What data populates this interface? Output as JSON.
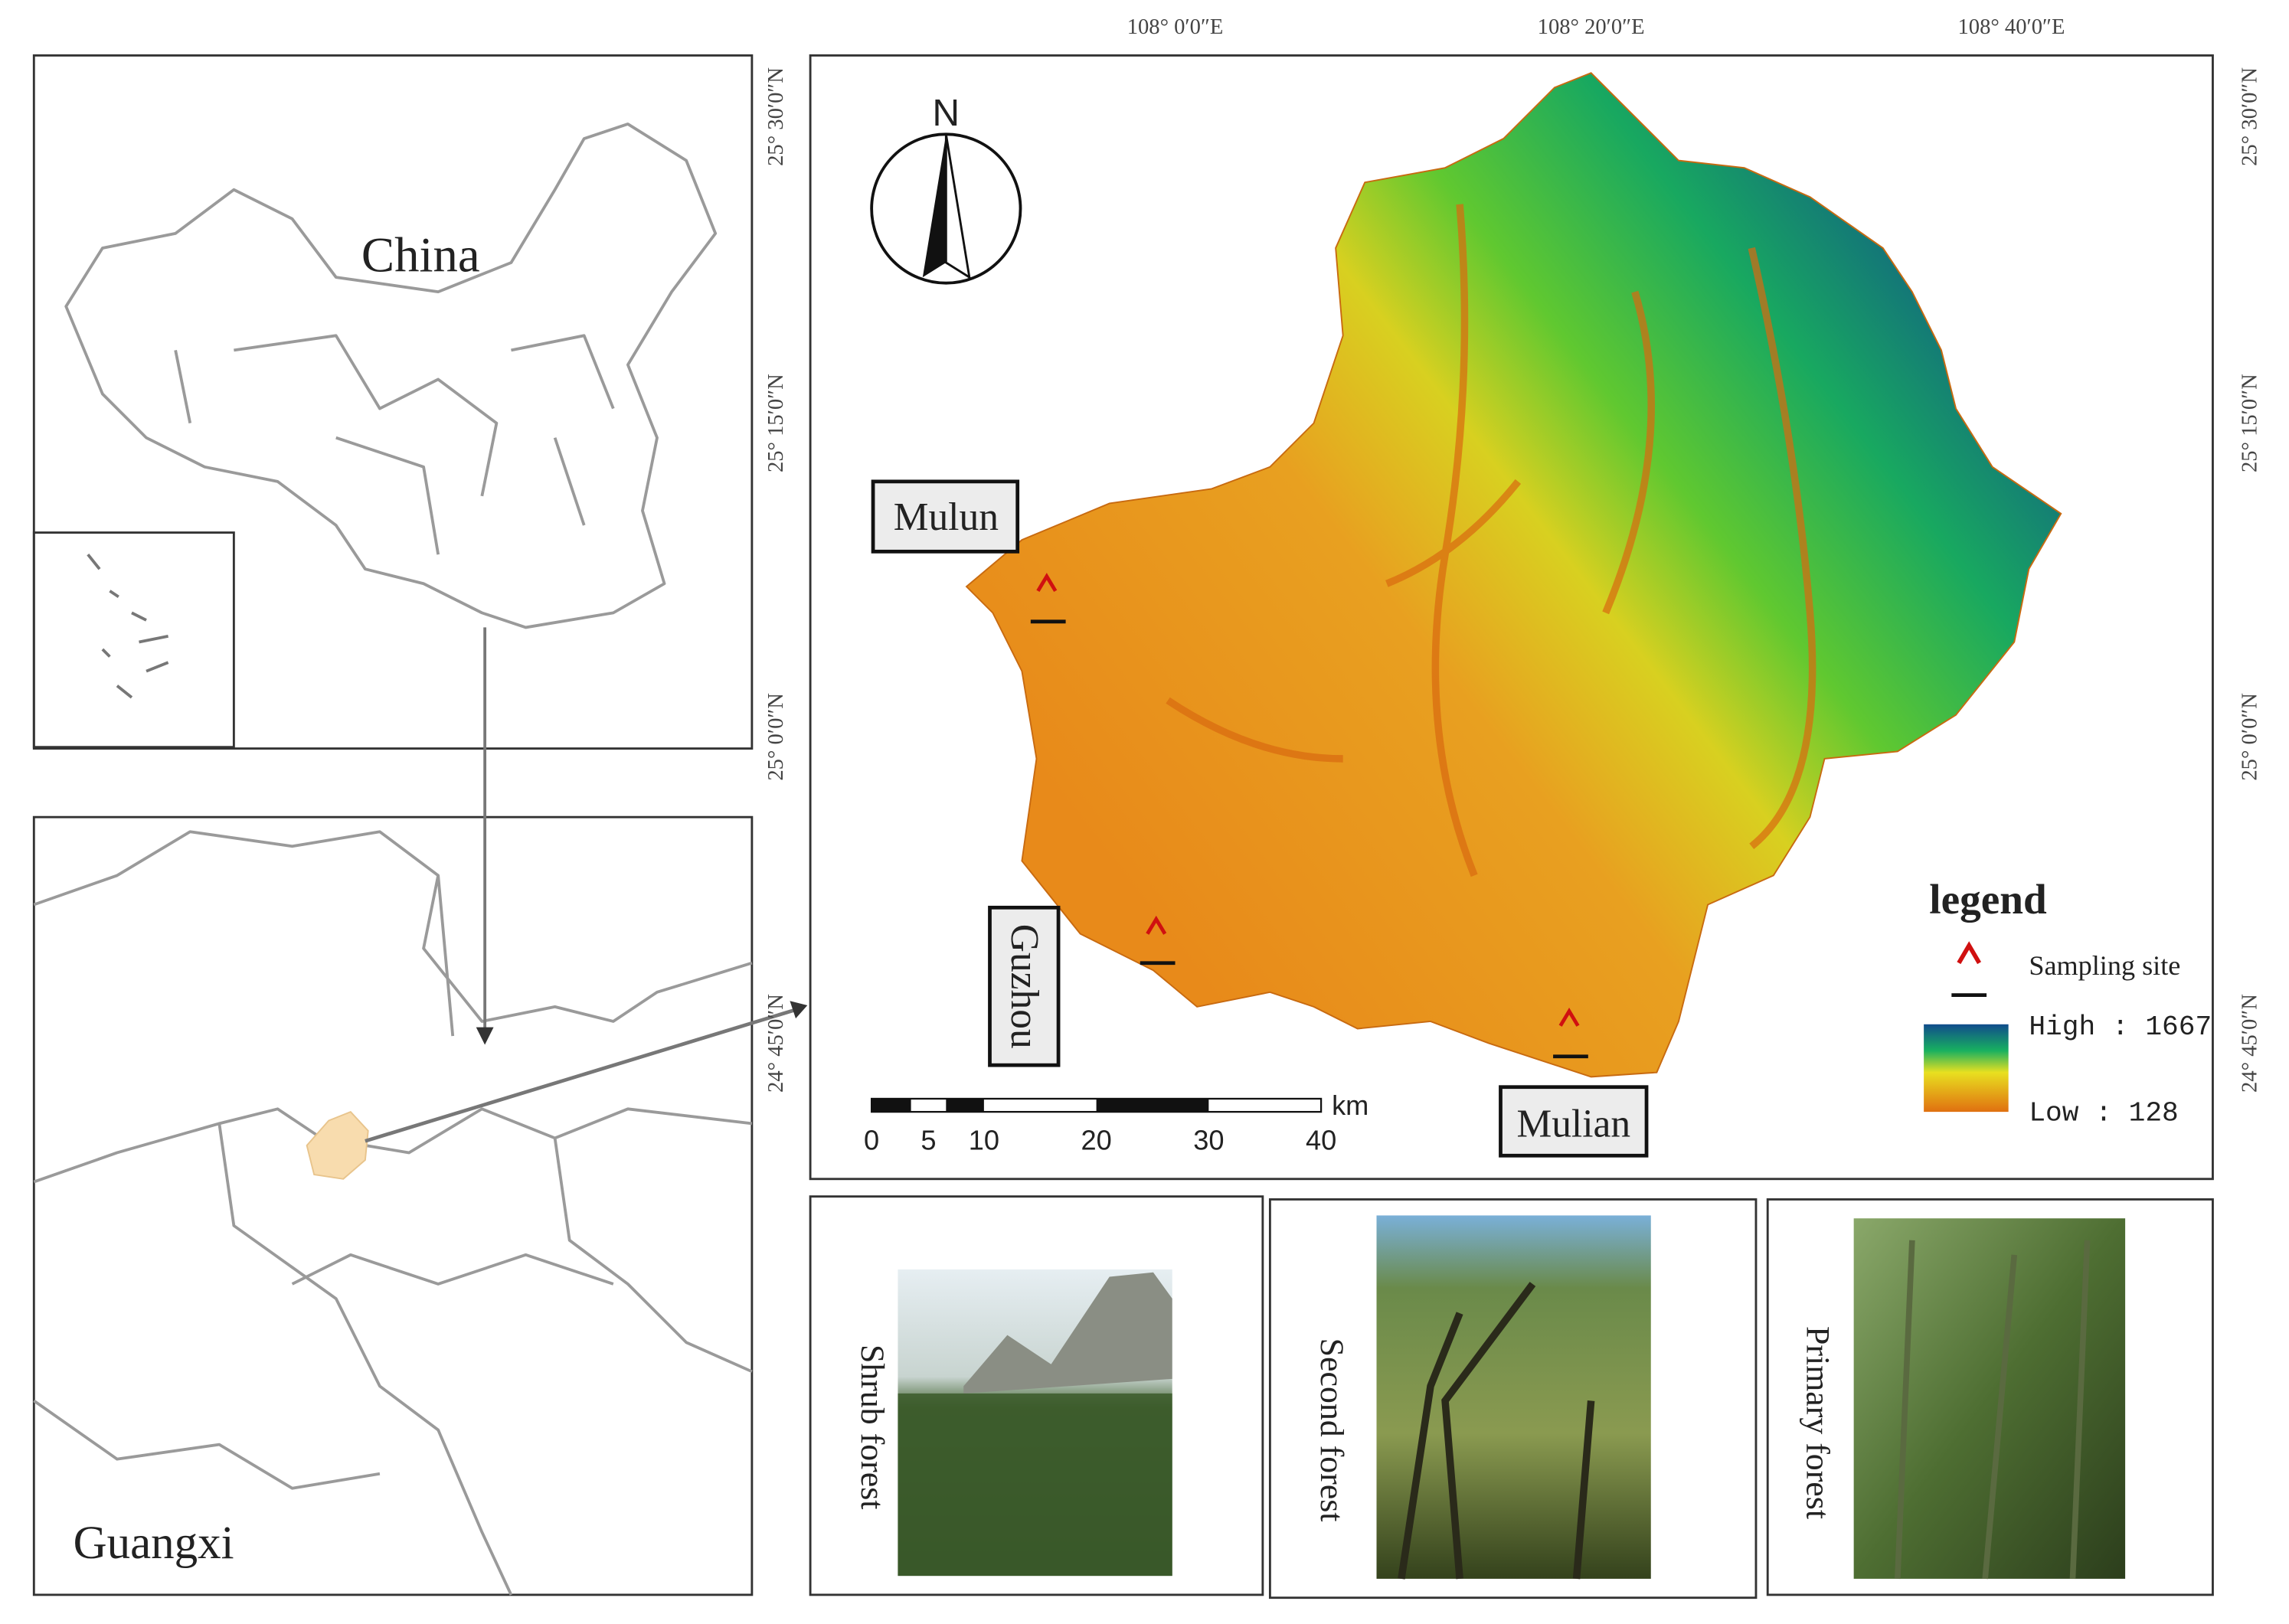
{
  "left_panel": {
    "top_label": "China",
    "bottom_label": "Guangxi"
  },
  "longitude_labels": [
    "108° 0′0″E",
    "108° 20′0″E",
    "108° 40′0″E"
  ],
  "latitude_labels": [
    "25° 30′0″N",
    "25° 15′0″N",
    "25° 0′0″N",
    "24° 45′0″N"
  ],
  "compass": "N",
  "site_labels": [
    "Mulun",
    "Guzhou",
    "Mulian"
  ],
  "scale_bar": {
    "ticks": [
      "0",
      "5",
      "10",
      "20",
      "30",
      "40"
    ],
    "unit": "km"
  },
  "legend": {
    "title": "legend",
    "marker_label": "Sampling site",
    "high": "High : 1667",
    "low": "Low : 128"
  },
  "photos": [
    "Shrub forest",
    "Second forest",
    "Primary forest"
  ]
}
